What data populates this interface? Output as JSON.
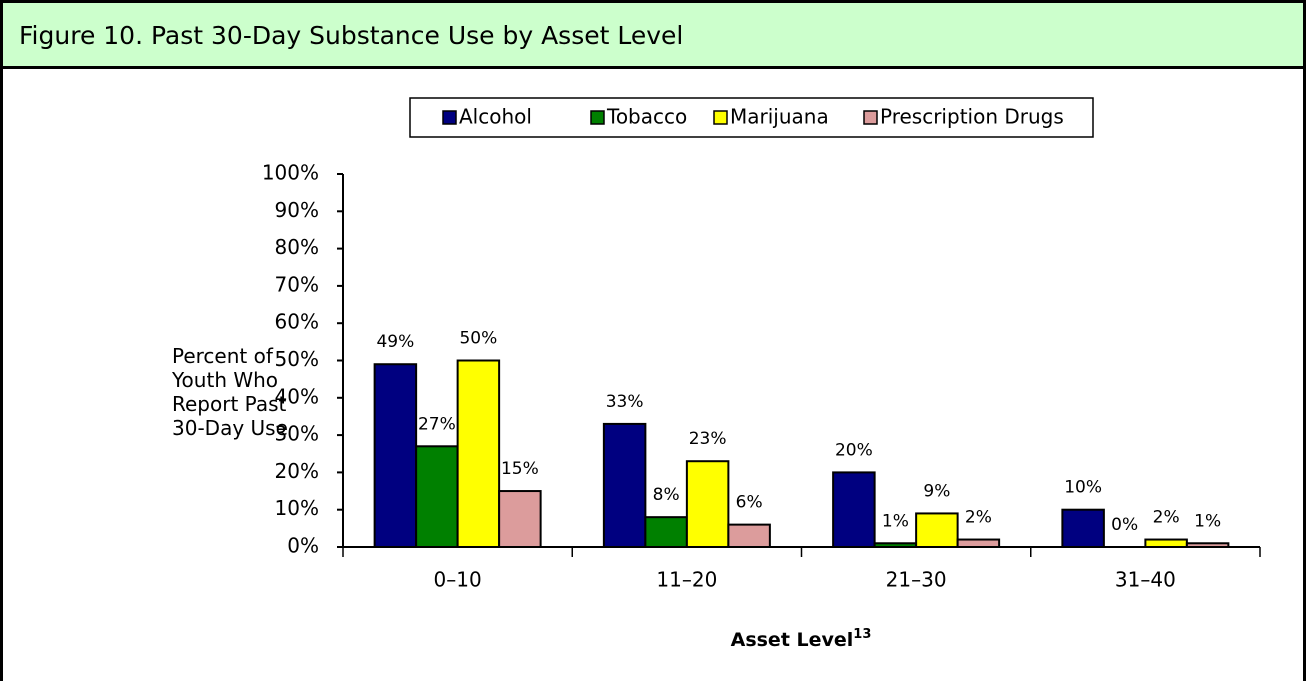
{
  "header": {
    "title": "Figure 10.  Past 30-Day Substance Use by Asset Level"
  },
  "chart_data": {
    "type": "bar",
    "y_label": "Percent of Youth Who Report Past 30-Day Use",
    "x_label": "Asset Level",
    "x_label_note": "13",
    "categories": [
      "0–10",
      "11–20",
      "21–30",
      "31–40"
    ],
    "series": [
      {
        "name": "Alcohol",
        "color": "#000080",
        "values": [
          49,
          33,
          20,
          10
        ],
        "value_labels": [
          "49%",
          "33%",
          "20%",
          "10%"
        ]
      },
      {
        "name": "Tobacco",
        "color": "#008000",
        "values": [
          27,
          8,
          1,
          0
        ],
        "value_labels": [
          "27%",
          "8%",
          "1%",
          "0%"
        ]
      },
      {
        "name": "Marijuana",
        "color": "#ffff00",
        "values": [
          50,
          23,
          9,
          2
        ],
        "value_labels": [
          "50%",
          "23%",
          "9%",
          "2%"
        ]
      },
      {
        "name": "Prescription Drugs",
        "color": "#dc9c9c",
        "values": [
          15,
          6,
          2,
          1
        ],
        "value_labels": [
          "15%",
          "6%",
          "2%",
          "1%"
        ]
      }
    ],
    "ylim": [
      0,
      100
    ],
    "yticks": [
      {
        "value": 0,
        "label": "0%"
      },
      {
        "value": 10,
        "label": "10%"
      },
      {
        "value": 20,
        "label": "20%"
      },
      {
        "value": 30,
        "label": "30%"
      },
      {
        "value": 40,
        "label": "40%"
      },
      {
        "value": 50,
        "label": "50%"
      },
      {
        "value": 60,
        "label": "60%"
      },
      {
        "value": 70,
        "label": "70%"
      },
      {
        "value": 80,
        "label": "80%"
      },
      {
        "value": 90,
        "label": "90%"
      },
      {
        "value": 100,
        "label": "100%"
      }
    ],
    "legend": "top"
  }
}
